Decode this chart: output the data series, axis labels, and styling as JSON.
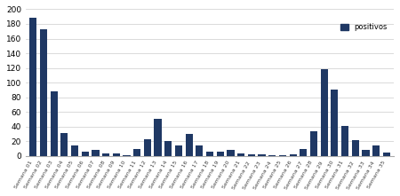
{
  "categories": [
    "Semana 01",
    "Semana 02",
    "Semana 03",
    "Semana 04",
    "Semana 05",
    "Semana 06",
    "Semana 07",
    "Semana 08",
    "Semana 09",
    "Semana 10",
    "Semana 11",
    "Semana 12",
    "Semana 13",
    "Semana 14",
    "Semana 15",
    "Semana 16",
    "Semana 17",
    "Semana 18",
    "Semana 19",
    "Semana 20",
    "Semana 21",
    "Semana 22",
    "Semana 23",
    "Semana 24",
    "Semana 25",
    "Semana 26",
    "Semana 27",
    "Semana 28",
    "Semana 29",
    "Semana 30",
    "Semana 31",
    "Semana 32",
    "Semana 33",
    "Semana 34",
    "Semana 35"
  ],
  "values": [
    188,
    173,
    88,
    31,
    14,
    6,
    8,
    4,
    3,
    1,
    10,
    23,
    50,
    20,
    14,
    30,
    14,
    6,
    6,
    8,
    4,
    2,
    2,
    1,
    1,
    2,
    10,
    34,
    118,
    91,
    41,
    21,
    8,
    14,
    5
  ],
  "bar_color": "#1F3864",
  "legend_label": "positivos",
  "ylim": [
    0,
    200
  ],
  "yticks": [
    0,
    20,
    40,
    60,
    80,
    100,
    120,
    140,
    160,
    180,
    200
  ],
  "xlabel_fontsize": 4.5,
  "ylabel_fontsize": 6.5,
  "legend_fontsize": 6,
  "plot_bg": "#ffffff",
  "fig_bg": "#ffffff"
}
